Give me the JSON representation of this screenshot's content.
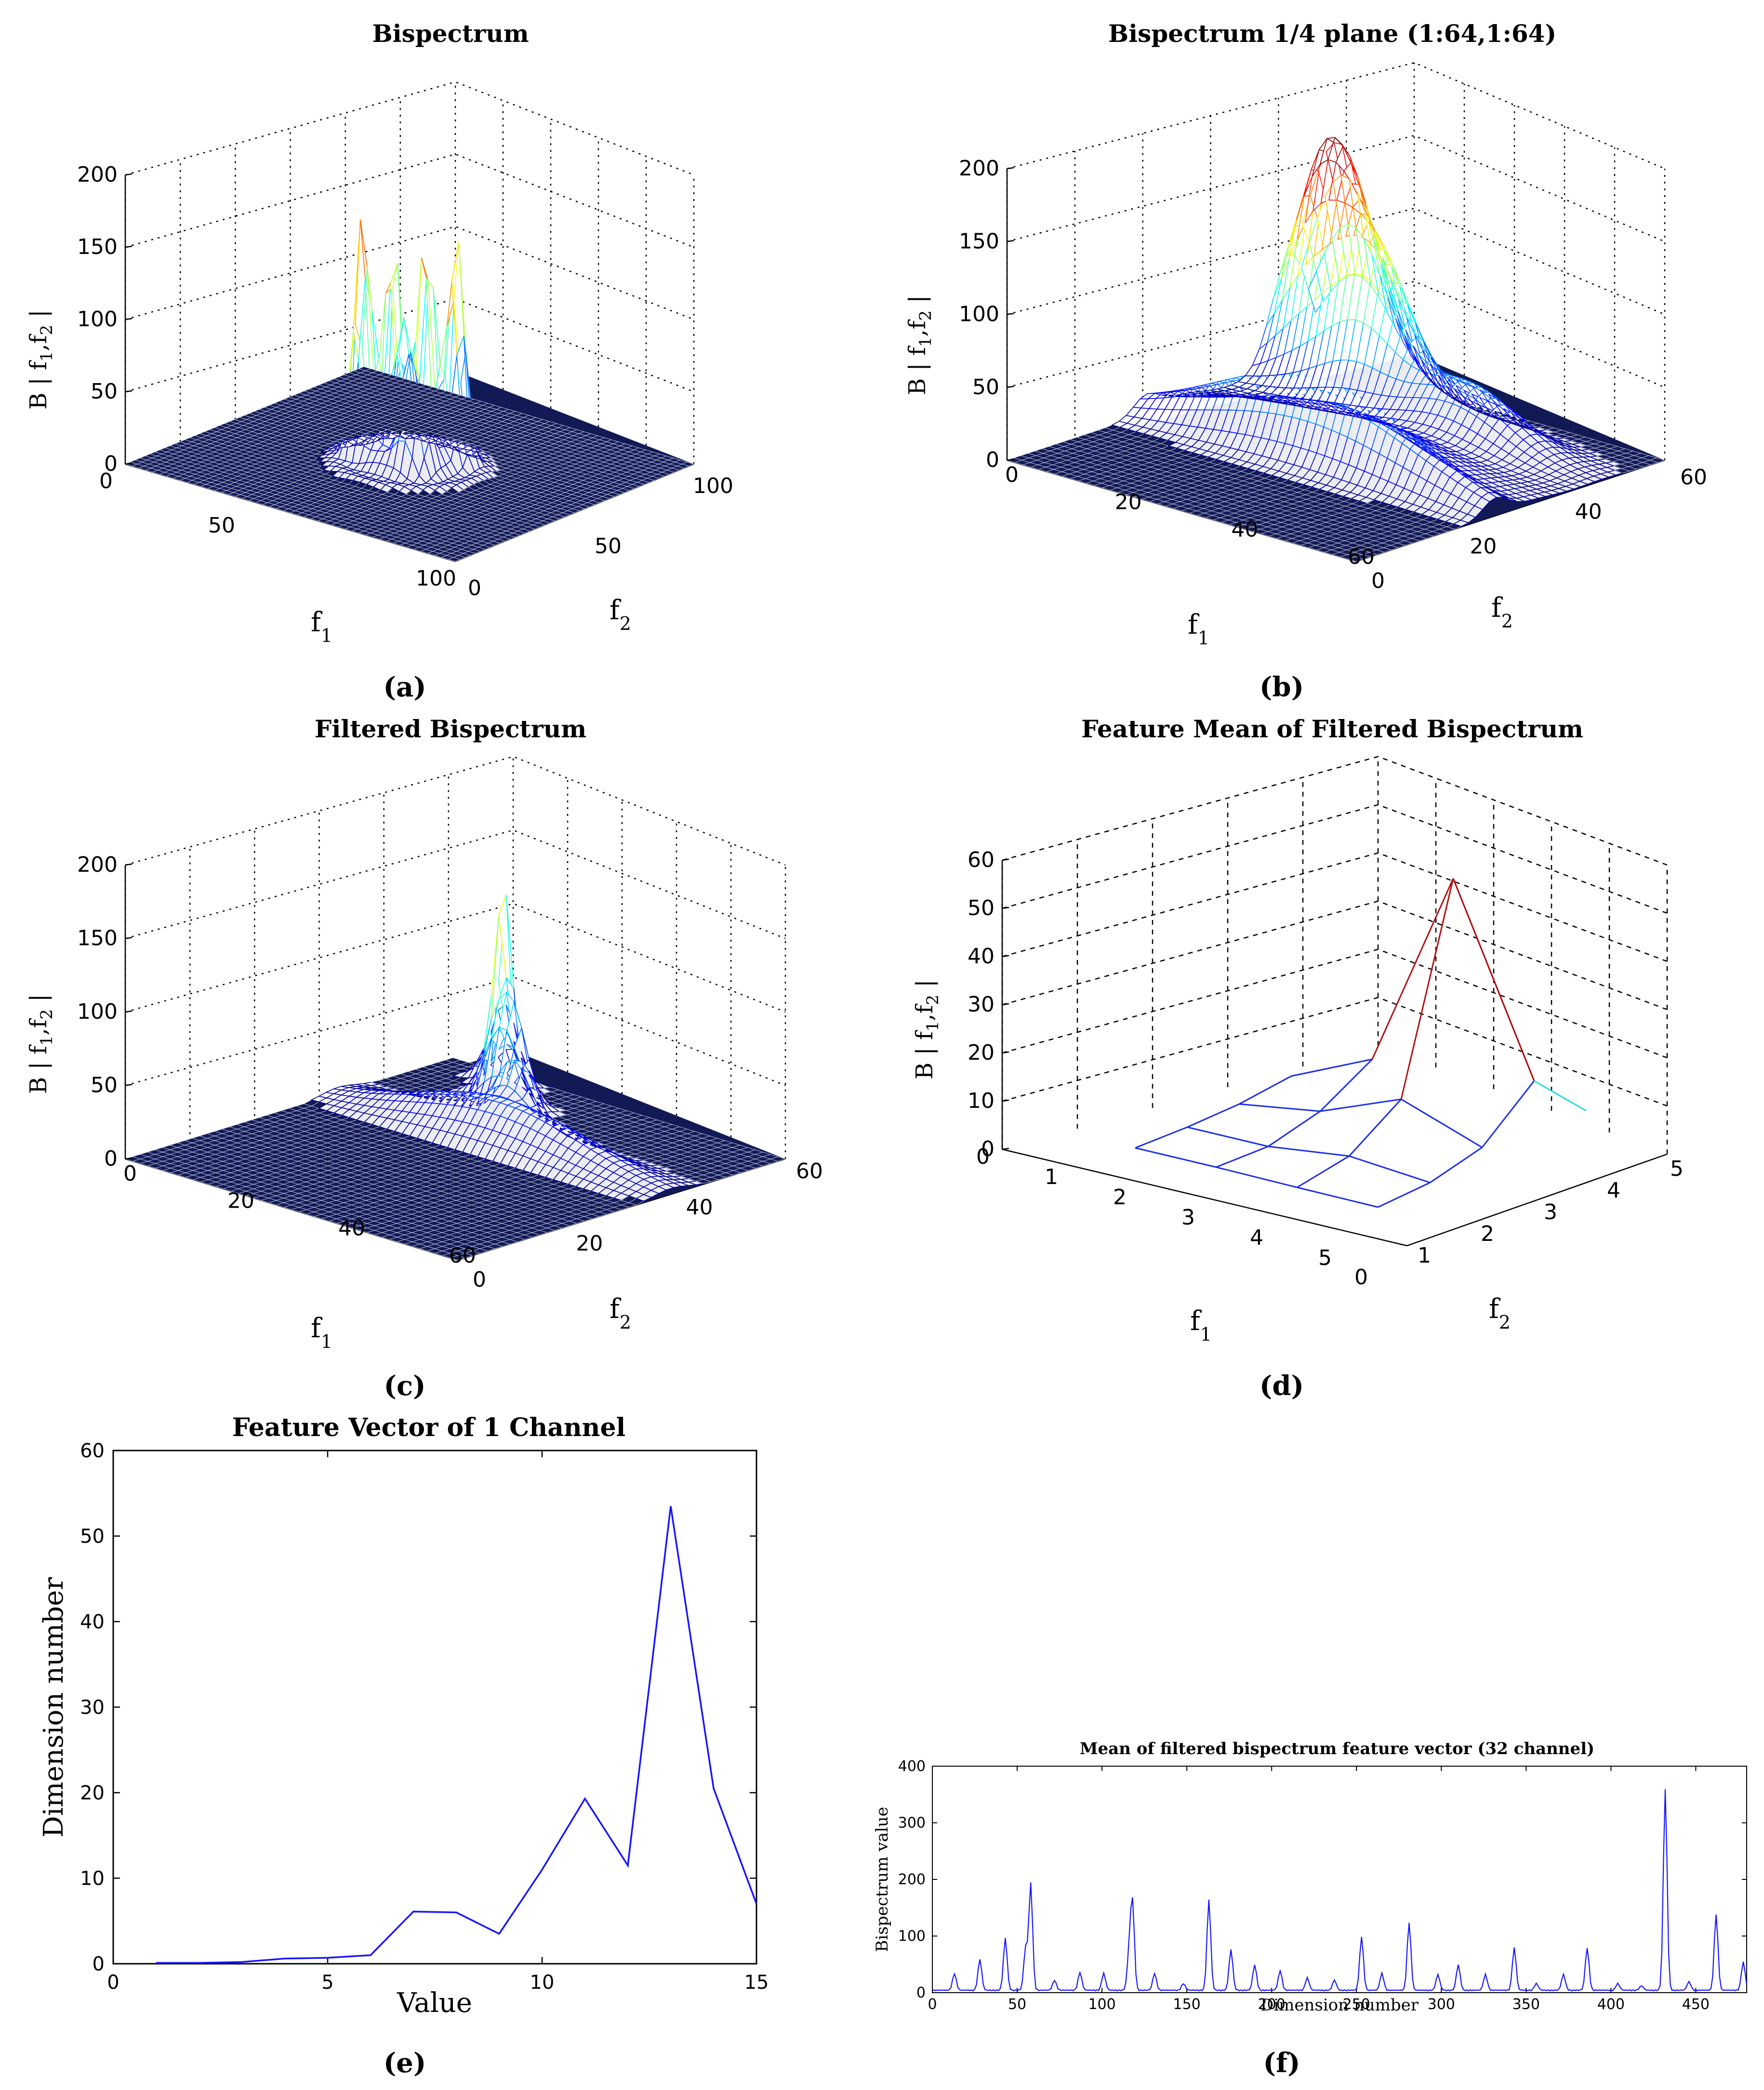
{
  "chart_data": [
    {
      "id": "a",
      "type": "surface3d",
      "caption": "(a)",
      "title": "Bispectrum",
      "zlabel": "B | f₁,f₂ |",
      "zlabel_parts": [
        "B | f",
        "1",
        ",f",
        "2",
        " |"
      ],
      "xlabel": "f₁",
      "xlabel_base": "f",
      "xlabel_sub": "1",
      "ylabel": "f₂",
      "ylabel_base": "f",
      "ylabel_sub": "2",
      "zticks": [
        "0",
        "50",
        "100",
        "150",
        "200"
      ],
      "xticks": [
        "0",
        "50",
        "100"
      ],
      "yticks": [
        "0",
        "50",
        "100"
      ],
      "zlim": [
        0,
        200
      ],
      "description_peaks": [
        165,
        160,
        165,
        160
      ]
    },
    {
      "id": "b",
      "type": "surface3d",
      "caption": "(b)",
      "title": "Bispectrum 1/4 plane (1:64,1:64)",
      "zlabel": "B | f₁,f₂ |",
      "zlabel_parts": [
        "B | f",
        "1",
        ",f",
        "2",
        " |"
      ],
      "xlabel": "f₁",
      "xlabel_base": "f",
      "xlabel_sub": "1",
      "ylabel": "f₂",
      "ylabel_base": "f",
      "ylabel_sub": "2",
      "zticks": [
        "0",
        "50",
        "100",
        "150",
        "200"
      ],
      "xticks": [
        "0",
        "20",
        "40",
        "60"
      ],
      "yticks": [
        "0",
        "20",
        "40",
        "60"
      ],
      "zlim": [
        0,
        200
      ],
      "description_peaks": [
        160
      ]
    },
    {
      "id": "c",
      "type": "surface3d",
      "caption": "(c)",
      "title": "Filtered Bispectrum",
      "zlabel": "B | f₁,f₂ |",
      "zlabel_parts": [
        "B | f",
        "1",
        ",f",
        "2",
        " |"
      ],
      "xlabel": "f₁",
      "xlabel_base": "f",
      "xlabel_sub": "1",
      "ylabel": "f₂",
      "ylabel_base": "f",
      "ylabel_sub": "2",
      "zticks": [
        "0",
        "50",
        "100",
        "150",
        "200"
      ],
      "xticks": [
        "0",
        "20",
        "40",
        "60"
      ],
      "yticks": [
        "0",
        "20",
        "40",
        "60"
      ],
      "zlim": [
        0,
        200
      ],
      "description_peaks": [
        155
      ]
    },
    {
      "id": "d",
      "type": "surface3d",
      "caption": "(d)",
      "title": "Feature Mean of Filtered Bispectrum",
      "zlabel": "B | f₁,f₂ |",
      "zlabel_parts": [
        "B | f",
        "1",
        ",f",
        "2",
        " |"
      ],
      "xlabel": "f₁",
      "xlabel_base": "f",
      "xlabel_sub": "1",
      "ylabel": "f₂",
      "ylabel_base": "f",
      "ylabel_sub": "2",
      "zticks": [
        "0",
        "10",
        "20",
        "30",
        "40",
        "50",
        "60"
      ],
      "xticks": [
        "0",
        "1",
        "2",
        "3",
        "4",
        "5"
      ],
      "yticks": [
        "0",
        "1",
        "2",
        "3",
        "4",
        "5"
      ],
      "zlim": [
        0,
        60
      ],
      "description_peaks": [
        53
      ]
    },
    {
      "id": "e",
      "type": "line",
      "caption": "(e)",
      "title": "Feature Vector of 1 Channel",
      "xlabel": "Value",
      "ylabel": "Dimension number",
      "xlim": [
        0,
        15
      ],
      "ylim": [
        0,
        60
      ],
      "xticks": [
        0,
        5,
        10,
        15
      ],
      "yticks": [
        0,
        10,
        20,
        30,
        40,
        50,
        60
      ],
      "x": [
        1,
        2,
        3,
        4,
        5,
        6,
        7,
        8,
        9,
        10,
        11,
        12,
        13,
        14,
        15
      ],
      "values": [
        0.1,
        0.1,
        0.2,
        0.6,
        0.7,
        1.0,
        6.1,
        6.0,
        3.5,
        11.0,
        19.3,
        11.5,
        53.5,
        20.5,
        7.0
      ],
      "line_color": "#1414ff"
    },
    {
      "id": "f",
      "type": "line",
      "caption": "(f)",
      "title": "Mean of filtered bispectrum feature vector (32 channel)",
      "xlabel": "Dimension number",
      "ylabel": "Bispectrum value",
      "xlim": [
        0,
        480
      ],
      "ylim": [
        0,
        400
      ],
      "xticks": [
        0,
        50,
        100,
        150,
        200,
        250,
        300,
        350,
        400,
        450
      ],
      "yticks": [
        0,
        100,
        200,
        300,
        400
      ],
      "baseline": 3,
      "peaks": [
        [
          13,
          30
        ],
        [
          28,
          55
        ],
        [
          43,
          92
        ],
        [
          55,
          75
        ],
        [
          58,
          188
        ],
        [
          72,
          18
        ],
        [
          87,
          32
        ],
        [
          101,
          30
        ],
        [
          116,
          65
        ],
        [
          118,
          152
        ],
        [
          131,
          30
        ],
        [
          148,
          12
        ],
        [
          163,
          160
        ],
        [
          176,
          72
        ],
        [
          190,
          45
        ],
        [
          205,
          35
        ],
        [
          221,
          22
        ],
        [
          237,
          18
        ],
        [
          253,
          95
        ],
        [
          265,
          30
        ],
        [
          281,
          120
        ],
        [
          298,
          28
        ],
        [
          310,
          45
        ],
        [
          326,
          28
        ],
        [
          343,
          75
        ],
        [
          356,
          12
        ],
        [
          372,
          28
        ],
        [
          386,
          75
        ],
        [
          404,
          12
        ],
        [
          418,
          8
        ],
        [
          432,
          355
        ],
        [
          446,
          15
        ],
        [
          462,
          135
        ],
        [
          478,
          50
        ]
      ],
      "line_color": "#1414ff"
    }
  ]
}
